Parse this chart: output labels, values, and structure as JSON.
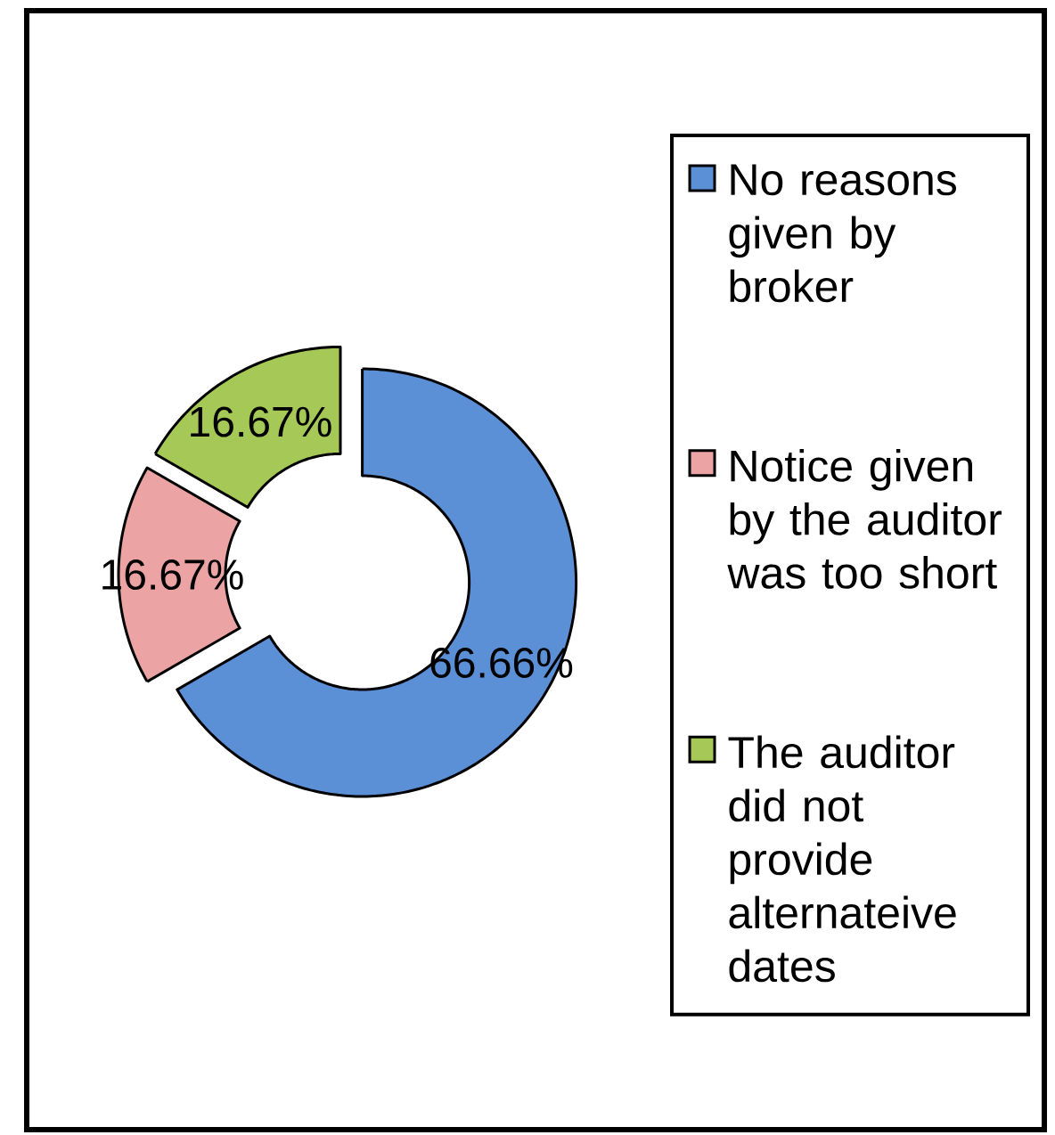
{
  "chart_data": {
    "type": "donut",
    "categories": [
      "No reasons given by broker",
      "Notice given by the auditor was too short",
      "The auditor did not provide alternateive dates"
    ],
    "values": [
      66.66,
      16.67,
      16.67
    ],
    "colors": [
      "#5b8fd6",
      "#eba3a3",
      "#a5c856"
    ],
    "value_labels": [
      "66.66%",
      "16.67%",
      "16.67%"
    ],
    "legend": "right"
  }
}
